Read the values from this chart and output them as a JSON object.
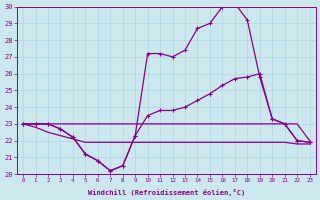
{
  "xlabel": "Windchill (Refroidissement éolien,°C)",
  "bg_color": "#cce8ee",
  "line_color": "#880088",
  "grid_color": "#aad8dd",
  "xmin": 0,
  "xmax": 23,
  "ymin": 20,
  "ymax": 30,
  "yticks": [
    20,
    21,
    22,
    23,
    24,
    25,
    26,
    27,
    28,
    29,
    30
  ],
  "xticks": [
    0,
    1,
    2,
    3,
    4,
    5,
    6,
    7,
    8,
    9,
    10,
    11,
    12,
    13,
    14,
    15,
    16,
    17,
    18,
    19,
    20,
    21,
    22,
    23
  ],
  "series1_x": [
    0,
    1,
    2,
    3,
    4,
    5,
    6,
    7,
    8,
    9,
    10,
    11,
    12,
    13,
    14,
    15,
    16,
    17,
    18,
    19,
    20,
    21,
    22,
    23
  ],
  "series1_y": [
    23.0,
    23.0,
    23.0,
    22.7,
    22.2,
    21.2,
    20.8,
    20.2,
    20.5,
    22.3,
    27.2,
    27.2,
    27.0,
    27.4,
    28.7,
    29.0,
    30.0,
    30.2,
    29.2,
    25.8,
    23.3,
    23.0,
    22.0,
    21.9
  ],
  "series2_x": [
    0,
    1,
    2,
    3,
    4,
    5,
    6,
    7,
    8,
    9,
    10,
    11,
    12,
    13,
    14,
    15,
    16,
    17,
    18,
    19,
    20,
    21,
    22,
    23
  ],
  "series2_y": [
    23.0,
    23.0,
    23.0,
    22.7,
    22.2,
    21.2,
    20.8,
    20.2,
    20.5,
    22.3,
    23.5,
    23.8,
    23.8,
    24.0,
    24.4,
    24.8,
    25.3,
    25.7,
    25.8,
    26.0,
    23.3,
    23.0,
    22.0,
    21.9
  ],
  "series3_x": [
    0,
    1,
    2,
    3,
    4,
    5,
    6,
    7,
    8,
    9,
    10,
    11,
    12,
    13,
    14,
    15,
    16,
    17,
    18,
    19,
    20,
    21,
    22,
    23
  ],
  "series3_y": [
    23.0,
    23.0,
    23.0,
    23.0,
    23.0,
    23.0,
    23.0,
    23.0,
    23.0,
    23.0,
    23.0,
    23.0,
    23.0,
    23.0,
    23.0,
    23.0,
    23.0,
    23.0,
    23.0,
    23.0,
    23.0,
    23.0,
    23.0,
    22.0
  ],
  "series4_x": [
    0,
    1,
    2,
    3,
    4,
    5,
    6,
    7,
    8,
    9,
    10,
    11,
    12,
    13,
    14,
    15,
    16,
    17,
    18,
    19,
    20,
    21,
    22,
    23
  ],
  "series4_y": [
    23.0,
    22.8,
    22.5,
    22.3,
    22.1,
    21.9,
    21.9,
    21.9,
    21.9,
    21.9,
    21.9,
    21.9,
    21.9,
    21.9,
    21.9,
    21.9,
    21.9,
    21.9,
    21.9,
    21.9,
    21.9,
    21.9,
    21.8,
    21.8
  ]
}
